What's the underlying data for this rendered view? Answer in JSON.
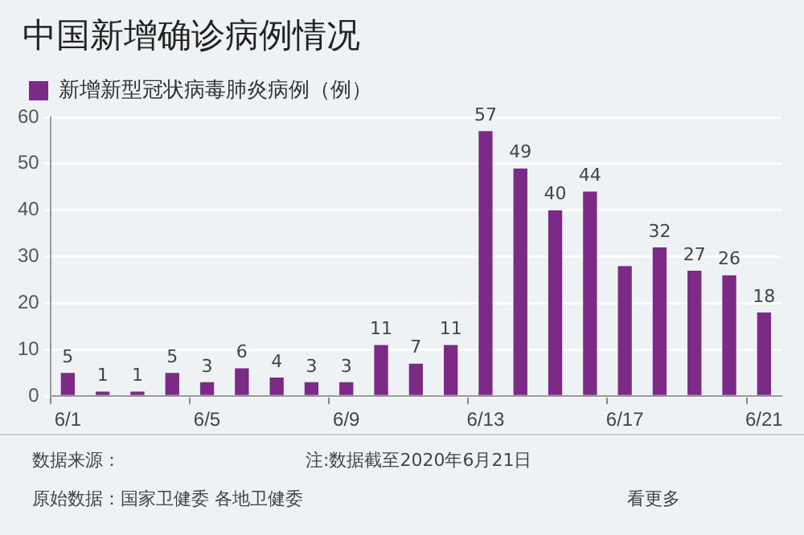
{
  "chart_data": {
    "type": "bar",
    "title": "中国新增确诊病例情况",
    "categories": [
      "6/1",
      null,
      null,
      null,
      "6/5",
      null,
      null,
      null,
      "6/9",
      null,
      null,
      null,
      "6/13",
      null,
      null,
      null,
      "6/17",
      null,
      null,
      null,
      "6/21"
    ],
    "series": [
      {
        "name": "新增新型冠状病毒肺炎病例（例）",
        "color": "#7b2a86",
        "values": [
          5,
          1,
          1,
          5,
          3,
          6,
          4,
          3,
          3,
          11,
          7,
          11,
          57,
          49,
          40,
          44,
          28,
          32,
          27,
          26,
          18
        ],
        "value_labels": [
          "5",
          "1",
          "1",
          "5",
          "3",
          "6",
          "4",
          "3",
          "3",
          "11",
          "7",
          "11",
          "57",
          "49",
          "40",
          "44",
          null,
          "32",
          "27",
          "26",
          "18"
        ]
      }
    ],
    "ylim": [
      0,
      60
    ],
    "yticks": [
      0,
      10,
      20,
      30,
      40,
      50,
      60
    ],
    "grid": "y",
    "legend": "top left",
    "annotations": [
      "数据来源：",
      "注:数据截至2020年6月21日",
      "原始数据：国家卫健委 各地卫健委",
      "看更多"
    ]
  }
}
